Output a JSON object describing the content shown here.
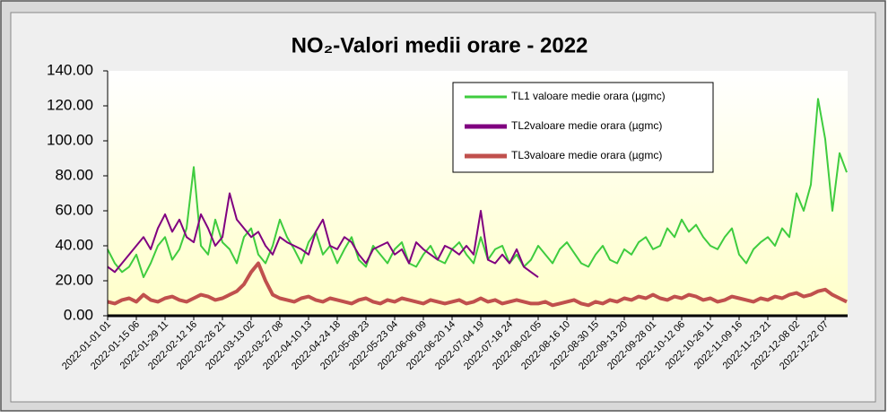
{
  "chart_data": {
    "type": "line",
    "title": "NO₂-Valori medii orare  - 2022",
    "categories": [
      "2022-01-01 01",
      null,
      null,
      null,
      "2022-01-15 06",
      null,
      null,
      null,
      "2022-01-29 11",
      null,
      null,
      null,
      "2022-02-12 16",
      null,
      null,
      null,
      "2022-02-26 21",
      null,
      null,
      null,
      "2022-03-13 02",
      null,
      null,
      null,
      "2022-03-27 08",
      null,
      null,
      null,
      "2022-04-10 13",
      null,
      null,
      null,
      "2022-04-24 18",
      null,
      null,
      null,
      "2022-05-08 23",
      null,
      null,
      null,
      "2022-05-23 04",
      null,
      null,
      null,
      "2022-06-06 09",
      null,
      null,
      null,
      "2022-06-20 14",
      null,
      null,
      null,
      "2022-07-04 19",
      null,
      null,
      null,
      "2022-07-18 24",
      null,
      null,
      null,
      "2022-08-02 05",
      null,
      null,
      null,
      "2022-08-16 10",
      null,
      null,
      null,
      "2022-08-30 15",
      null,
      null,
      null,
      "2022-09-13 20",
      null,
      null,
      null,
      "2022-09-28 01",
      null,
      null,
      null,
      "2022-10-12 06",
      null,
      null,
      null,
      "2022-10-26 11",
      null,
      null,
      null,
      "2022-11-09 16",
      null,
      null,
      null,
      "2022-11-23 21",
      null,
      null,
      null,
      "2022-12-08 02",
      null,
      null,
      null,
      "2022-12-22 07",
      null,
      null,
      null
    ],
    "series": [
      {
        "name": "TL1 valoare medie orara (µgmc)",
        "color": "#3fcc3f",
        "values": [
          38,
          30,
          25,
          28,
          35,
          22,
          30,
          40,
          45,
          32,
          38,
          50,
          85,
          40,
          35,
          55,
          42,
          38,
          30,
          45,
          50,
          35,
          30,
          40,
          55,
          45,
          38,
          30,
          42,
          48,
          35,
          40,
          30,
          38,
          45,
          32,
          28,
          40,
          35,
          30,
          38,
          42,
          30,
          28,
          35,
          40,
          32,
          30,
          38,
          42,
          35,
          30,
          45,
          32,
          38,
          40,
          30,
          35,
          28,
          32,
          40,
          35,
          30,
          38,
          42,
          36,
          30,
          28,
          35,
          40,
          32,
          30,
          38,
          35,
          42,
          45,
          38,
          40,
          50,
          45,
          55,
          48,
          52,
          45,
          40,
          38,
          45,
          50,
          35,
          30,
          38,
          42,
          45,
          40,
          50,
          45,
          70,
          60,
          75,
          124,
          101,
          60,
          93,
          82
        ]
      },
      {
        "name": "TL2valoare medie orara (µgmc)",
        "color": "#800080",
        "values": [
          28,
          25,
          30,
          35,
          40,
          45,
          38,
          50,
          58,
          48,
          55,
          45,
          42,
          58,
          50,
          40,
          45,
          70,
          55,
          50,
          45,
          48,
          40,
          35,
          45,
          42,
          40,
          38,
          35,
          48,
          55,
          40,
          38,
          45,
          42,
          35,
          30,
          38,
          40,
          42,
          35,
          38,
          30,
          42,
          38,
          35,
          32,
          40,
          38,
          35,
          40,
          35,
          60,
          32,
          30,
          35,
          30,
          38,
          28,
          25,
          22,
          null,
          null,
          null,
          null,
          null,
          null,
          null,
          null,
          null,
          null,
          null,
          null,
          null,
          null,
          null,
          null,
          null,
          null,
          null,
          null,
          null,
          null,
          null,
          null,
          null,
          null,
          null,
          null,
          null,
          null,
          null,
          null,
          null,
          null,
          null,
          null,
          null,
          null,
          null,
          null,
          null,
          null,
          null
        ]
      },
      {
        "name": "TL3valoare medie orara (µgmc)",
        "color": "#c0504d",
        "values": [
          8,
          7,
          9,
          10,
          8,
          12,
          9,
          8,
          10,
          11,
          9,
          8,
          10,
          12,
          11,
          9,
          10,
          12,
          14,
          18,
          25,
          30,
          20,
          12,
          10,
          9,
          8,
          10,
          11,
          9,
          8,
          10,
          9,
          8,
          7,
          9,
          10,
          8,
          7,
          9,
          8,
          10,
          9,
          8,
          7,
          9,
          8,
          7,
          8,
          9,
          7,
          8,
          10,
          8,
          9,
          7,
          8,
          9,
          8,
          7,
          7,
          8,
          6,
          7,
          8,
          9,
          7,
          6,
          8,
          7,
          9,
          8,
          10,
          9,
          11,
          10,
          12,
          10,
          9,
          11,
          10,
          12,
          11,
          9,
          10,
          8,
          9,
          11,
          10,
          9,
          8,
          10,
          9,
          11,
          10,
          12,
          13,
          11,
          12,
          14,
          15,
          12,
          10,
          8
        ]
      }
    ],
    "ylim": [
      0,
      140
    ],
    "yticks": [
      {
        "value": 0,
        "label": "0.00"
      },
      {
        "value": 20,
        "label": "20.00"
      },
      {
        "value": 40,
        "label": "40.00"
      },
      {
        "value": 60,
        "label": "60.00"
      },
      {
        "value": 80,
        "label": "80.00"
      },
      {
        "value": 100,
        "label": "100.00"
      },
      {
        "value": 120,
        "label": "120.00"
      },
      {
        "value": 140,
        "label": "140.00"
      }
    ]
  }
}
